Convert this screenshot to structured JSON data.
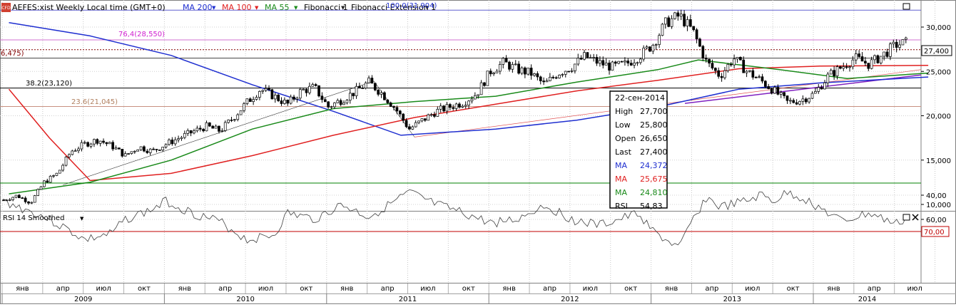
{
  "header": {
    "badge": "CFD",
    "symbol": "AEFES:xist Weekly Local time (GMT+0)",
    "indicators": [
      {
        "label": "MA 200",
        "color": "#1f2fd0"
      },
      {
        "label": "MA 100",
        "color": "#e02020"
      },
      {
        "label": "MA 55",
        "color": "#1a8a1a"
      },
      {
        "label": "Fibonacci 1",
        "color": "#222222"
      },
      {
        "label": "Fibonacci Extension 1",
        "color": "#222222"
      }
    ]
  },
  "fib_labels": {
    "top": "100.0(31,904)",
    "l764": "76,4(28,550)",
    "left": "6,475)",
    "l382": "38.2(23,120)",
    "l236": "23.6(21,045)"
  },
  "price_axis": {
    "ticks": [
      "30,000",
      "25,000",
      "20,000",
      "15,000",
      "10,000"
    ],
    "last_label": "27,400"
  },
  "tooltip": {
    "date": "22-сен-2014",
    "rows": [
      {
        "k": "High",
        "v": "27,700",
        "color": "#000000"
      },
      {
        "k": "Low",
        "v": "25,800",
        "color": "#000000"
      },
      {
        "k": "Open",
        "v": "26,650",
        "color": "#000000"
      },
      {
        "k": "Last",
        "v": "27,400",
        "color": "#000000"
      },
      {
        "k": "MA",
        "v": "24,372",
        "color": "#1f2fd0"
      },
      {
        "k": "MA",
        "v": "25,675",
        "color": "#e02020"
      },
      {
        "k": "MA",
        "v": "24,810",
        "color": "#1a8a1a"
      },
      {
        "k": "RSI",
        "v": "54,83",
        "color": "#000000"
      }
    ]
  },
  "rsi_panel": {
    "title": "RSI 14 Smoothed",
    "ticks": [
      "60,00",
      "40,00"
    ],
    "level_label": "70,00"
  },
  "time_axis": {
    "months": [
      "янв",
      "апр",
      "июл",
      "окт",
      "янв",
      "апр",
      "июл",
      "окт",
      "янв",
      "апр",
      "июл",
      "окт",
      "янв",
      "апр",
      "июл",
      "окт",
      "янв",
      "апр",
      "июл",
      "окт",
      "янв",
      "апр",
      "июл"
    ],
    "years": [
      "2009",
      "2010",
      "2011",
      "2012",
      "2013",
      "2014"
    ]
  },
  "chart_data": {
    "type": "candlestick",
    "timeframe": "Weekly",
    "x_range": [
      "2009-01",
      "2014-09"
    ],
    "ylim": [
      9500,
      32500
    ],
    "close_path": [
      [
        "2009-01",
        10500
      ],
      [
        "2009-02",
        11000
      ],
      [
        "2009-03",
        10200
      ],
      [
        "2009-04",
        12500
      ],
      [
        "2009-05",
        13500
      ],
      [
        "2009-06",
        16000
      ],
      [
        "2009-07",
        16800
      ],
      [
        "2009-08",
        17300
      ],
      [
        "2009-09",
        16600
      ],
      [
        "2009-10",
        15500
      ],
      [
        "2009-11",
        16500
      ],
      [
        "2009-12",
        16000
      ],
      [
        "2010-01",
        16800
      ],
      [
        "2010-02",
        17500
      ],
      [
        "2010-03",
        18200
      ],
      [
        "2010-04",
        18800
      ],
      [
        "2010-05",
        18300
      ],
      [
        "2010-06",
        19800
      ],
      [
        "2010-07",
        21500
      ],
      [
        "2010-08",
        23000
      ],
      [
        "2010-09",
        22200
      ],
      [
        "2010-10",
        21300
      ],
      [
        "2010-11",
        22800
      ],
      [
        "2010-12",
        23200
      ],
      [
        "2011-01",
        21000
      ],
      [
        "2011-02",
        21800
      ],
      [
        "2011-03",
        22700
      ],
      [
        "2011-04",
        23800
      ],
      [
        "2011-05",
        22500
      ],
      [
        "2011-06",
        20800
      ],
      [
        "2011-07",
        18500
      ],
      [
        "2011-08",
        19500
      ],
      [
        "2011-09",
        20500
      ],
      [
        "2011-10",
        21000
      ],
      [
        "2011-11",
        21500
      ],
      [
        "2011-12",
        22500
      ],
      [
        "2012-01",
        25000
      ],
      [
        "2012-02",
        26000
      ],
      [
        "2012-03",
        25200
      ],
      [
        "2012-04",
        24800
      ],
      [
        "2012-05",
        23500
      ],
      [
        "2012-06",
        24800
      ],
      [
        "2012-07",
        25500
      ],
      [
        "2012-08",
        26700
      ],
      [
        "2012-09",
        26000
      ],
      [
        "2012-10",
        25500
      ],
      [
        "2012-11",
        25800
      ],
      [
        "2012-12",
        26700
      ],
      [
        "2013-01",
        28000
      ],
      [
        "2013-02",
        30500
      ],
      [
        "2013-03",
        31300
      ],
      [
        "2013-04",
        29500
      ],
      [
        "2013-05",
        26000
      ],
      [
        "2013-06",
        24500
      ],
      [
        "2013-07",
        26500
      ],
      [
        "2013-08",
        25000
      ],
      [
        "2013-09",
        24000
      ],
      [
        "2013-10",
        22800
      ],
      [
        "2013-11",
        21500
      ],
      [
        "2013-12",
        21800
      ],
      [
        "2014-01",
        22500
      ],
      [
        "2014-02",
        24500
      ],
      [
        "2014-03",
        25500
      ],
      [
        "2014-04",
        26500
      ],
      [
        "2014-05",
        25800
      ],
      [
        "2014-06",
        26800
      ],
      [
        "2014-07",
        28000
      ],
      [
        "2014-08",
        28300
      ],
      [
        "2014-09",
        27400
      ]
    ],
    "ma_series": [
      {
        "name": "MA 200",
        "color": "#1f2fd0",
        "points": [
          [
            "2009-01",
            30500
          ],
          [
            "2009-07",
            29000
          ],
          [
            "2010-01",
            26800
          ],
          [
            "2010-07",
            23500
          ],
          [
            "2011-01",
            20500
          ],
          [
            "2011-06",
            17800
          ],
          [
            "2012-01",
            18500
          ],
          [
            "2012-07",
            19500
          ],
          [
            "2013-01",
            21000
          ],
          [
            "2013-07",
            23000
          ],
          [
            "2014-01",
            23700
          ],
          [
            "2014-09",
            24372
          ]
        ]
      },
      {
        "name": "MA 100",
        "color": "#e02020",
        "points": [
          [
            "2009-01",
            23000
          ],
          [
            "2009-04",
            17500
          ],
          [
            "2009-07",
            12700
          ],
          [
            "2010-01",
            13500
          ],
          [
            "2010-07",
            15500
          ],
          [
            "2011-01",
            17800
          ],
          [
            "2011-07",
            19800
          ],
          [
            "2012-01",
            21300
          ],
          [
            "2012-07",
            22800
          ],
          [
            "2013-01",
            24000
          ],
          [
            "2013-07",
            25300
          ],
          [
            "2014-01",
            25600
          ],
          [
            "2014-09",
            25675
          ]
        ]
      },
      {
        "name": "MA 55",
        "color": "#1a8a1a",
        "points": [
          [
            "2009-01",
            11200
          ],
          [
            "2009-07",
            12500
          ],
          [
            "2010-01",
            15000
          ],
          [
            "2010-07",
            18500
          ],
          [
            "2011-01",
            20800
          ],
          [
            "2011-07",
            21600
          ],
          [
            "2012-01",
            22200
          ],
          [
            "2012-07",
            23800
          ],
          [
            "2013-01",
            25200
          ],
          [
            "2013-04",
            26300
          ],
          [
            "2013-10",
            25200
          ],
          [
            "2014-03",
            24200
          ],
          [
            "2014-09",
            24810
          ]
        ]
      }
    ],
    "fibonacci": [
      {
        "label": "100.0",
        "value": 31904
      },
      {
        "label": "76,4",
        "value": 28550
      },
      {
        "label": "38.2",
        "value": 23120
      },
      {
        "label": "23.6",
        "value": 21045
      }
    ],
    "last": {
      "date": "22-сен-2014",
      "high": 27700,
      "low": 25800,
      "open": 26650,
      "close": 27400
    },
    "rsi": {
      "name": "RSI 14 Smoothed",
      "ylim": [
        30,
        90
      ],
      "level": 70,
      "points": [
        [
          "2009-01",
          45
        ],
        [
          "2009-04",
          58
        ],
        [
          "2009-06",
          70
        ],
        [
          "2009-07",
          77
        ],
        [
          "2009-09",
          72
        ],
        [
          "2009-10",
          60
        ],
        [
          "2009-12",
          52
        ],
        [
          "2010-01",
          45
        ],
        [
          "2010-03",
          55
        ],
        [
          "2010-05",
          62
        ],
        [
          "2010-07",
          77
        ],
        [
          "2010-09",
          73
        ],
        [
          "2010-10",
          55
        ],
        [
          "2010-12",
          60
        ],
        [
          "2011-02",
          48
        ],
        [
          "2011-04",
          58
        ],
        [
          "2011-06",
          45
        ],
        [
          "2011-07",
          38
        ],
        [
          "2011-09",
          48
        ],
        [
          "2011-11",
          55
        ],
        [
          "2012-01",
          63
        ],
        [
          "2012-03",
          60
        ],
        [
          "2012-05",
          48
        ],
        [
          "2012-07",
          60
        ],
        [
          "2012-09",
          65
        ],
        [
          "2012-10",
          62
        ],
        [
          "2012-12",
          55
        ],
        [
          "2013-01",
          70
        ],
        [
          "2013-03",
          84
        ],
        [
          "2013-04",
          60
        ],
        [
          "2013-05",
          42
        ],
        [
          "2013-06",
          50
        ],
        [
          "2013-08",
          45
        ],
        [
          "2013-09",
          40
        ],
        [
          "2013-10",
          45
        ],
        [
          "2013-11",
          38
        ],
        [
          "2013-12",
          42
        ],
        [
          "2014-01",
          48
        ],
        [
          "2014-03",
          62
        ],
        [
          "2014-05",
          55
        ],
        [
          "2014-07",
          64
        ],
        [
          "2014-08",
          58
        ],
        [
          "2014-09",
          55
        ]
      ]
    }
  }
}
